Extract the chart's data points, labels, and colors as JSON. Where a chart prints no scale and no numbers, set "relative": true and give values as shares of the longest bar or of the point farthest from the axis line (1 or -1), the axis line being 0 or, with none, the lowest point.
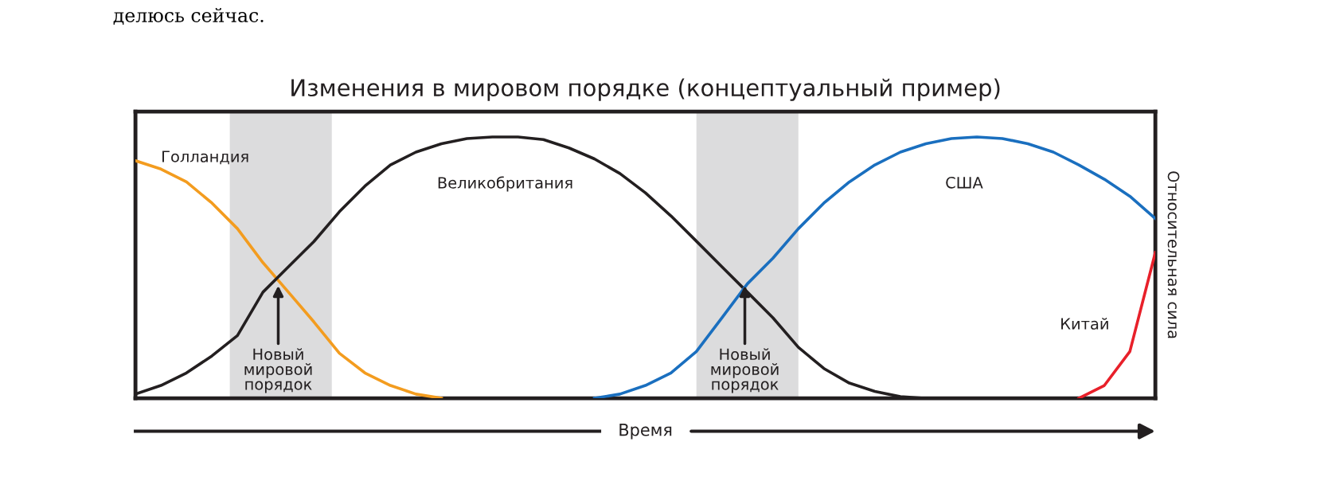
{
  "chart_data": {
    "type": "line",
    "title": "Изменения в мировом порядке (концептуальный пример)",
    "xlabel": "Время",
    "ylabel": "Относительная сила",
    "relative": true,
    "legend": false,
    "marker": "none",
    "line_style": "solid",
    "categories": [
      null,
      null,
      null,
      null,
      null,
      null,
      null,
      null,
      null,
      null,
      null,
      null,
      null,
      null,
      null,
      null,
      null,
      null,
      null,
      null,
      null,
      null,
      null,
      null,
      null,
      null,
      null,
      null,
      null,
      null,
      null,
      null,
      null,
      null,
      null,
      null,
      null,
      null,
      null,
      null,
      null
    ],
    "series": [
      {
        "name": "Голландия",
        "color": "#f39c1f",
        "values": [
          0.909,
          0.877,
          0.828,
          0.747,
          0.649,
          0.519,
          0.406,
          0.292,
          0.172,
          0.097,
          0.049,
          0.016,
          0,
          null,
          null,
          null,
          null,
          null,
          null,
          null,
          null,
          null,
          null,
          null,
          null,
          null,
          null,
          null,
          null,
          null,
          null,
          null,
          null,
          null,
          null,
          null,
          null,
          null,
          null,
          null,
          null
        ]
      },
      {
        "name": "Великобритания",
        "color": "#231f20",
        "values": [
          0.016,
          0.049,
          0.097,
          0.162,
          0.24,
          0.406,
          0.503,
          0.6,
          0.714,
          0.812,
          0.893,
          0.942,
          0.974,
          0.994,
          1,
          1,
          0.99,
          0.958,
          0.916,
          0.86,
          0.786,
          0.698,
          0.601,
          0.503,
          0.406,
          0.308,
          0.195,
          0.114,
          0.058,
          0.026,
          0.006,
          0,
          null,
          null,
          null,
          null,
          null,
          null,
          null,
          null,
          null
        ]
      },
      {
        "name": "США",
        "color": "#1a6fbf",
        "values": [
          null,
          null,
          null,
          null,
          null,
          null,
          null,
          null,
          null,
          null,
          null,
          null,
          null,
          null,
          null,
          null,
          null,
          null,
          0,
          0.016,
          0.049,
          0.097,
          0.179,
          0.308,
          0.438,
          0.536,
          0.649,
          0.747,
          0.828,
          0.893,
          0.942,
          0.974,
          0.994,
          1,
          0.994,
          0.974,
          0.942,
          0.893,
          0.838,
          0.773,
          0.688
        ]
      },
      {
        "name": "Китай",
        "color": "#e8202a",
        "values": [
          null,
          null,
          null,
          null,
          null,
          null,
          null,
          null,
          null,
          null,
          null,
          null,
          null,
          null,
          null,
          null,
          null,
          null,
          null,
          null,
          null,
          null,
          null,
          null,
          null,
          null,
          null,
          null,
          null,
          null,
          null,
          null,
          null,
          null,
          null,
          null,
          null,
          0,
          0.049,
          0.179,
          0.558
        ]
      }
    ],
    "annotations": [
      "Новый\nмировой\nпорядок",
      "Новый\nмировой\nпорядок",
      "делюсь сейчас."
    ]
  }
}
